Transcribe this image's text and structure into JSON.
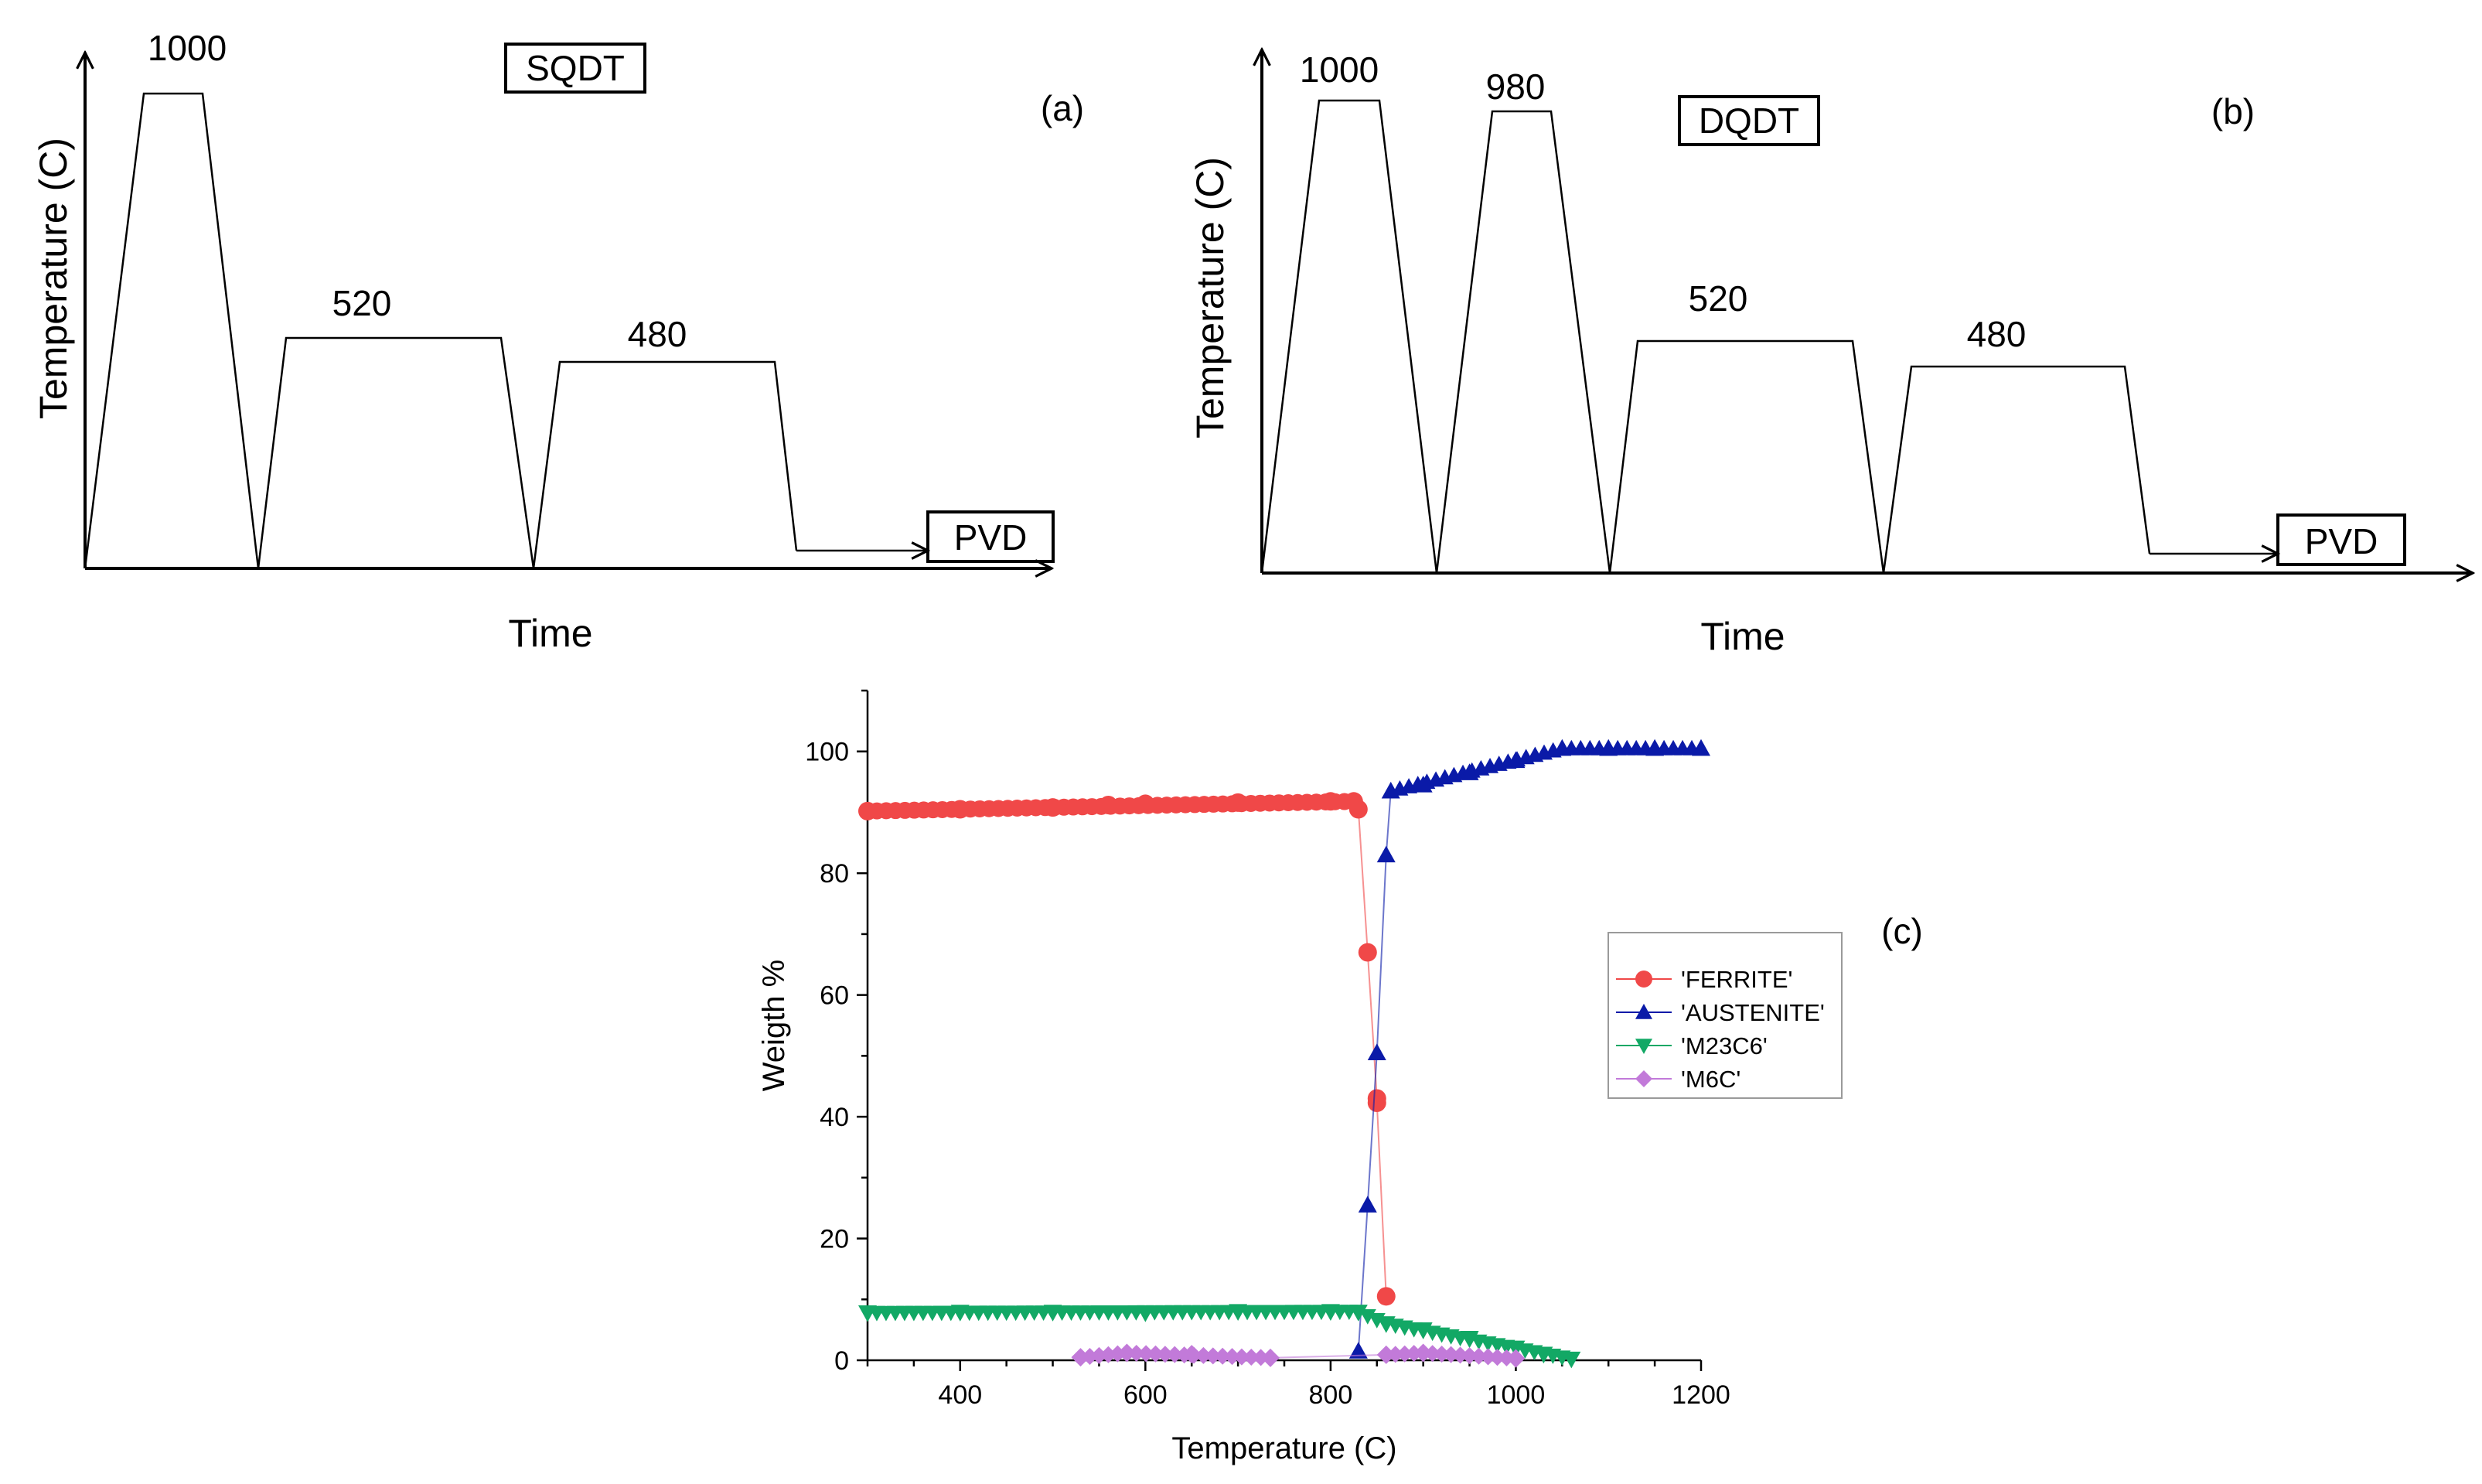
{
  "chart_data": [
    {
      "type": "diagram",
      "panel": "(a)",
      "title": "SQDT",
      "xlabel": "Time",
      "ylabel": "Temperature (C)",
      "steps": [
        "1000",
        "520",
        "480"
      ],
      "final": "PVD"
    },
    {
      "type": "diagram",
      "panel": "(b)",
      "title": "DQDT",
      "xlabel": "Time",
      "ylabel": "Temperature (C)",
      "steps": [
        "1000",
        "980",
        "520",
        "480"
      ],
      "final": "PVD"
    },
    {
      "type": "scatter",
      "panel": "(c)",
      "xlabel": "Temperature (C)",
      "ylabel": "Weigth %",
      "xlim": [
        300,
        1200
      ],
      "ylim": [
        0,
        110
      ],
      "xticks": [
        400,
        600,
        800,
        1000,
        1200
      ],
      "yticks": [
        0,
        20,
        40,
        60,
        80,
        100
      ],
      "legend_position": "center-right",
      "series": [
        {
          "name": "'FERRITE'",
          "color": "#f04848",
          "marker": "circle",
          "x": [
            300,
            400,
            500,
            560,
            600,
            700,
            800,
            825,
            830,
            840,
            850,
            850,
            860
          ],
          "y": [
            90.2,
            90.5,
            90.8,
            91.2,
            91.4,
            91.6,
            91.8,
            91.8,
            90.5,
            67,
            43,
            42.3,
            10.5
          ]
        },
        {
          "name": "'AUSTENITE'",
          "color": "#0a1aa8",
          "marker": "triangle-up",
          "x": [
            830,
            840,
            850,
            860,
            865,
            900,
            950,
            1000,
            1050,
            1100,
            1150,
            1200
          ],
          "y": [
            1.5,
            25.5,
            50.5,
            83,
            93.5,
            94.5,
            96.5,
            98.5,
            100.5,
            100.5,
            100.5,
            100.5
          ],
          "dense_segments": [
            [
              865,
              93.5,
              1050,
              100.5
            ],
            [
              1050,
              100.5,
              1200,
              100.5
            ]
          ]
        },
        {
          "name": "'M23C6'",
          "color": "#12a865",
          "marker": "triangle-down",
          "x": [
            300,
            400,
            500,
            600,
            700,
            800,
            830,
            860,
            900,
            950,
            1000,
            1030,
            1060
          ],
          "y": [
            7.8,
            7.9,
            7.9,
            7.8,
            8.0,
            8.0,
            7.9,
            6.0,
            5.0,
            3.6,
            2.0,
            1.0,
            0.2
          ],
          "dense_segments": [
            [
              300,
              7.8,
              830,
              8.0
            ],
            [
              830,
              7.9,
              860,
              6.0
            ],
            [
              860,
              6.0,
              1060,
              0.2
            ]
          ]
        },
        {
          "name": "'M6C'",
          "color": "#c27ad9",
          "marker": "diamond",
          "x": [
            530,
            580,
            650,
            735,
            860,
            900,
            1000
          ],
          "y": [
            0.5,
            1.2,
            1.0,
            0.4,
            0.9,
            1.2,
            0.3
          ],
          "dense_segments": [
            [
              530,
              0.5,
              580,
              1.2
            ],
            [
              580,
              1.2,
              735,
              0.4
            ],
            [
              860,
              0.9,
              900,
              1.2
            ],
            [
              900,
              1.2,
              1000,
              0.3
            ]
          ]
        }
      ]
    }
  ]
}
